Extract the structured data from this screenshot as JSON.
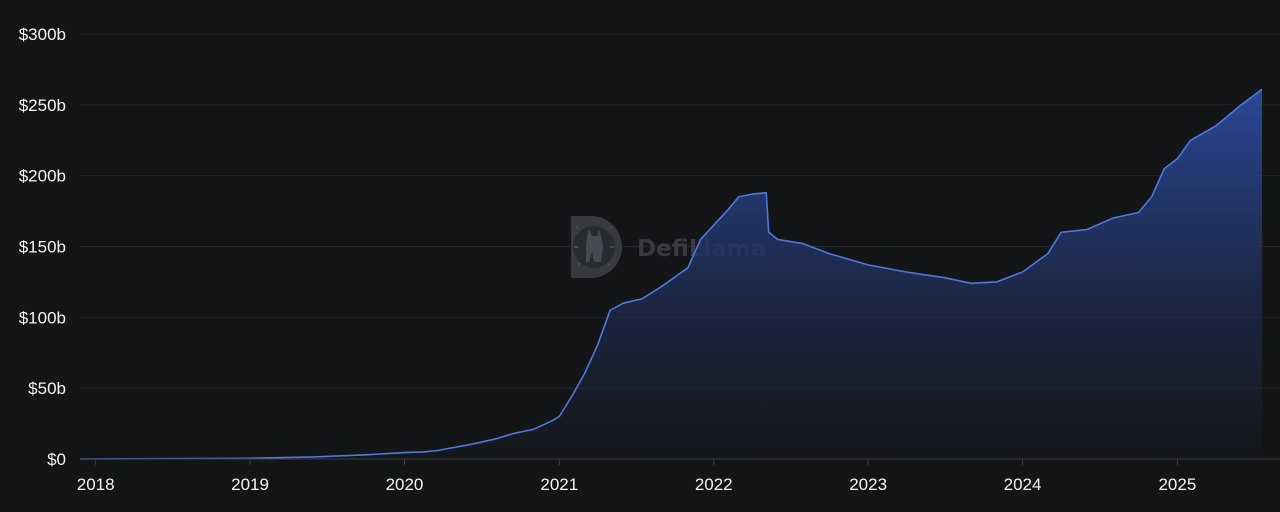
{
  "brand": {
    "watermark": "DefiLlama",
    "logo_icon": "llama-logo-icon"
  },
  "colors": {
    "background": "#131517",
    "line": "#4f78e0",
    "area_top": "#2c4a9e",
    "area_bottom": "#15171b",
    "grid": "#23262b",
    "tick_text": "#f2f4f7"
  },
  "chart_data": {
    "type": "area",
    "title": "",
    "xlabel": "",
    "ylabel": "",
    "x_range": [
      "2017-11-25",
      "2025-07-20"
    ],
    "ylim": [
      0,
      300
    ],
    "y_unit": "billion USD",
    "grid": "horizontal",
    "legend": "none",
    "x_ticks": [
      {
        "date": "2018-01-01",
        "label": "2018"
      },
      {
        "date": "2019-01-01",
        "label": "2019"
      },
      {
        "date": "2020-01-01",
        "label": "2020"
      },
      {
        "date": "2021-01-01",
        "label": "2021"
      },
      {
        "date": "2022-01-01",
        "label": "2022"
      },
      {
        "date": "2023-01-01",
        "label": "2023"
      },
      {
        "date": "2024-01-01",
        "label": "2024"
      },
      {
        "date": "2025-01-01",
        "label": "2025"
      }
    ],
    "y_ticks": [
      {
        "value": 0,
        "label": "$0"
      },
      {
        "value": 50,
        "label": "$50b"
      },
      {
        "value": 100,
        "label": "$100b"
      },
      {
        "value": 150,
        "label": "$150b"
      },
      {
        "value": 200,
        "label": "$200b"
      },
      {
        "value": 250,
        "label": "$250b"
      },
      {
        "value": 300,
        "label": "$300b"
      }
    ],
    "series": [
      {
        "points": [
          [
            "2017-11-25",
            0.0
          ],
          [
            "2018-06-01",
            0.2
          ],
          [
            "2019-01-01",
            0.5
          ],
          [
            "2019-06-01",
            1.5
          ],
          [
            "2019-10-01",
            3.0
          ],
          [
            "2020-01-01",
            4.5
          ],
          [
            "2020-02-15",
            5.0
          ],
          [
            "2020-03-20",
            6.0
          ],
          [
            "2020-04-15",
            7.5
          ],
          [
            "2020-06-01",
            10.0
          ],
          [
            "2020-08-01",
            14.0
          ],
          [
            "2020-09-15",
            18.0
          ],
          [
            "2020-11-01",
            21.0
          ],
          [
            "2020-12-15",
            27.0
          ],
          [
            "2021-01-01",
            30.0
          ],
          [
            "2021-02-01",
            45.0
          ],
          [
            "2021-03-01",
            60.0
          ],
          [
            "2021-04-01",
            80.0
          ],
          [
            "2021-05-01",
            105.0
          ],
          [
            "2021-06-01",
            110.0
          ],
          [
            "2021-07-15",
            113.0
          ],
          [
            "2021-09-01",
            122.0
          ],
          [
            "2021-11-01",
            135.0
          ],
          [
            "2021-12-01",
            155.0
          ],
          [
            "2022-01-01",
            165.0
          ],
          [
            "2022-02-01",
            175.0
          ],
          [
            "2022-03-01",
            185.0
          ],
          [
            "2022-04-01",
            187.0
          ],
          [
            "2022-05-05",
            188.0
          ],
          [
            "2022-05-11",
            160.0
          ],
          [
            "2022-06-01",
            155.0
          ],
          [
            "2022-08-01",
            152.0
          ],
          [
            "2022-10-01",
            145.0
          ],
          [
            "2023-01-01",
            137.0
          ],
          [
            "2023-04-01",
            132.0
          ],
          [
            "2023-07-01",
            128.0
          ],
          [
            "2023-09-01",
            124.0
          ],
          [
            "2023-11-01",
            125.0
          ],
          [
            "2024-01-01",
            132.0
          ],
          [
            "2024-03-01",
            145.0
          ],
          [
            "2024-04-01",
            160.0
          ],
          [
            "2024-06-01",
            162.0
          ],
          [
            "2024-08-01",
            170.0
          ],
          [
            "2024-10-01",
            174.0
          ],
          [
            "2024-11-01",
            185.0
          ],
          [
            "2024-12-01",
            205.0
          ],
          [
            "2025-01-01",
            212.0
          ],
          [
            "2025-02-01",
            225.0
          ],
          [
            "2025-04-01",
            235.0
          ],
          [
            "2025-06-01",
            250.0
          ],
          [
            "2025-07-20",
            261.0
          ]
        ]
      }
    ]
  }
}
